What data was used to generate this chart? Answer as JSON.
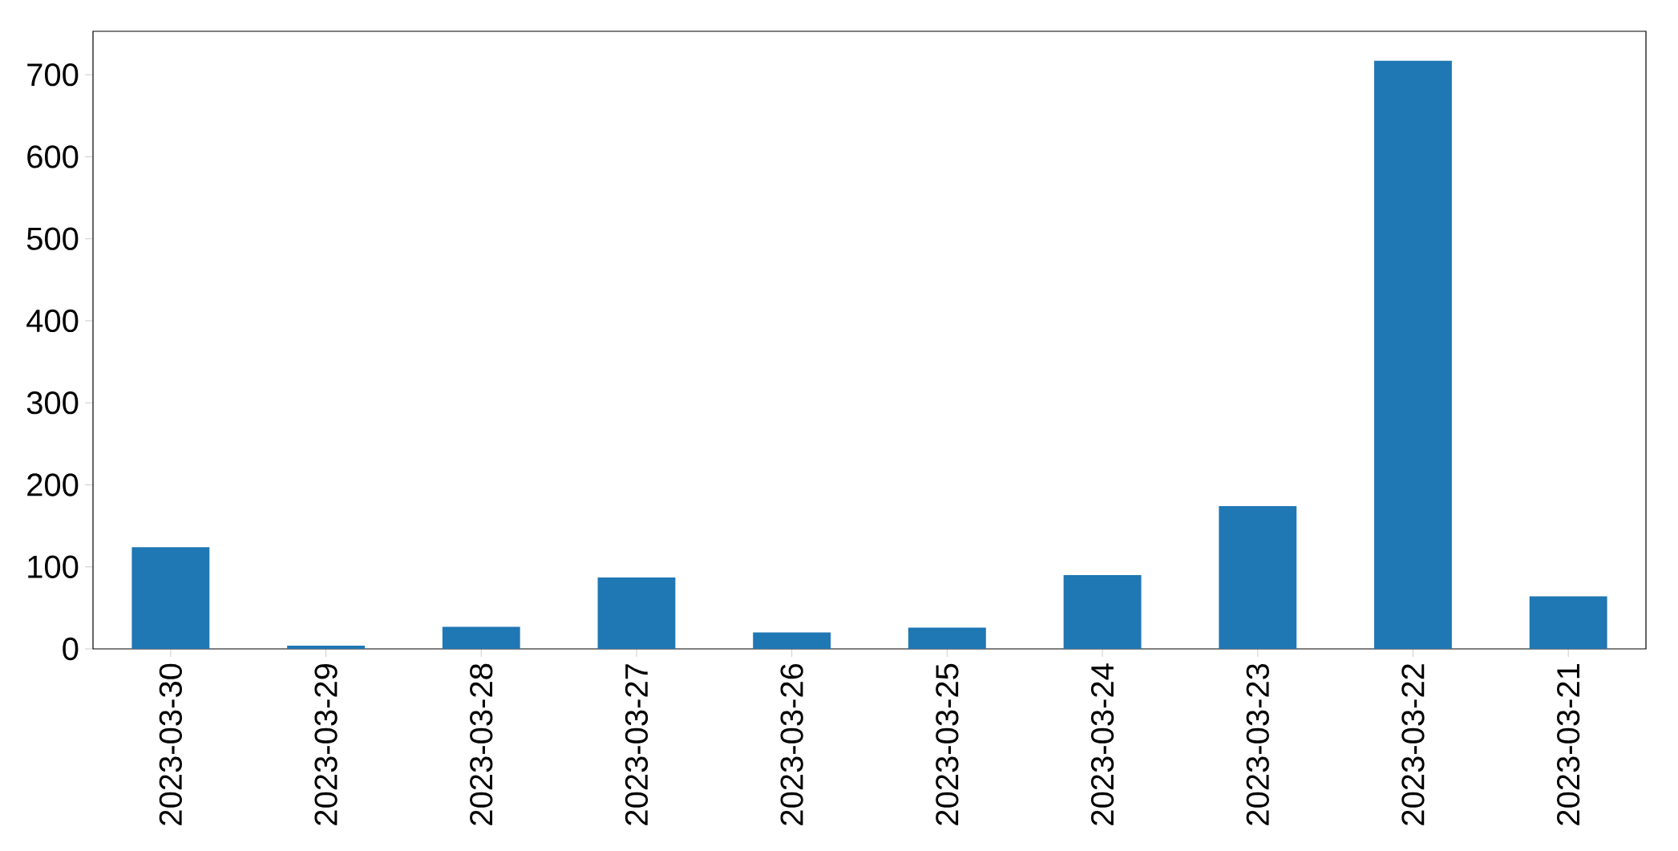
{
  "chart_data": {
    "type": "bar",
    "categories": [
      "2023-03-30",
      "2023-03-29",
      "2023-03-28",
      "2023-03-27",
      "2023-03-26",
      "2023-03-25",
      "2023-03-24",
      "2023-03-23",
      "2023-03-22",
      "2023-03-21"
    ],
    "values": [
      124,
      4,
      27,
      87,
      20,
      26,
      90,
      174,
      717,
      64
    ],
    "color": "#1f77b4",
    "ylim": [
      0,
      753
    ],
    "yticks": [
      0,
      100,
      200,
      300,
      400,
      500,
      600,
      700
    ],
    "grid": false
  }
}
